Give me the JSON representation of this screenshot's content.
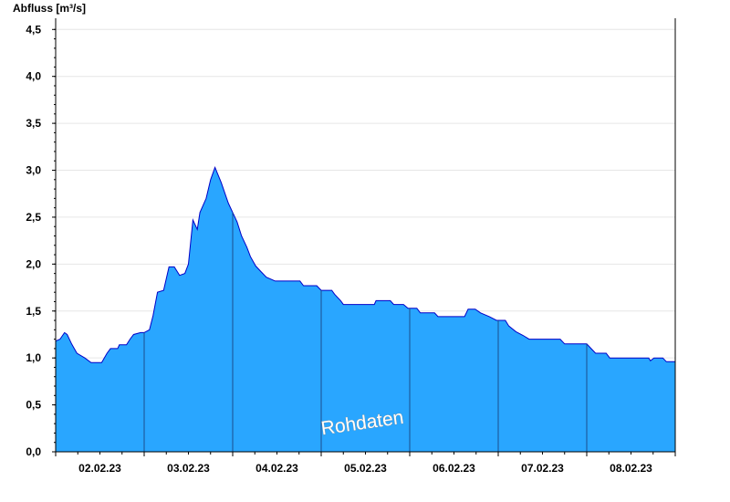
{
  "chart_data": {
    "type": "area",
    "title": "",
    "ylabel": "Abfluss [m³/s]",
    "xlabel": "",
    "watermark": "Rohdaten",
    "ylim": [
      0,
      4.6
    ],
    "xlim_days": [
      0,
      7
    ],
    "grid": true,
    "colors": {
      "fill": "#29a6ff",
      "line": "#0000c8",
      "grid": "#e6e6e6",
      "day_separator": "#1a4d8c"
    },
    "y_ticks": [
      {
        "value": 0.0,
        "label": "0,0"
      },
      {
        "value": 0.5,
        "label": "0,5"
      },
      {
        "value": 1.0,
        "label": "1,0"
      },
      {
        "value": 1.5,
        "label": "1,5"
      },
      {
        "value": 2.0,
        "label": "2,0"
      },
      {
        "value": 2.5,
        "label": "2,5"
      },
      {
        "value": 3.0,
        "label": "3,0"
      },
      {
        "value": 3.5,
        "label": "3,5"
      },
      {
        "value": 4.0,
        "label": "4,0"
      },
      {
        "value": 4.5,
        "label": "4,5"
      }
    ],
    "x_ticks": [
      {
        "label": "02.02.23",
        "day_center": 0.5
      },
      {
        "label": "03.02.23",
        "day_center": 1.5
      },
      {
        "label": "04.02.23",
        "day_center": 2.5
      },
      {
        "label": "05.02.23",
        "day_center": 3.5
      },
      {
        "label": "06.02.23",
        "day_center": 4.5
      },
      {
        "label": "07.02.23",
        "day_center": 5.5
      },
      {
        "label": "08.02.23",
        "day_center": 6.5
      }
    ],
    "day_boundaries": [
      1,
      2,
      3,
      4,
      5,
      6
    ],
    "series": [
      {
        "values_day_q": [
          [
            0.0,
            1.18
          ],
          [
            0.05,
            1.2
          ],
          [
            0.1,
            1.27
          ],
          [
            0.13,
            1.25
          ],
          [
            0.18,
            1.15
          ],
          [
            0.24,
            1.05
          ],
          [
            0.33,
            1.0
          ],
          [
            0.4,
            0.95
          ],
          [
            0.52,
            0.95
          ],
          [
            0.58,
            1.05
          ],
          [
            0.62,
            1.1
          ],
          [
            0.7,
            1.1
          ],
          [
            0.72,
            1.14
          ],
          [
            0.8,
            1.14
          ],
          [
            0.84,
            1.2
          ],
          [
            0.88,
            1.25
          ],
          [
            0.96,
            1.27
          ],
          [
            1.0,
            1.27
          ],
          [
            1.06,
            1.3
          ],
          [
            1.1,
            1.45
          ],
          [
            1.15,
            1.7
          ],
          [
            1.22,
            1.72
          ],
          [
            1.28,
            1.97
          ],
          [
            1.34,
            1.97
          ],
          [
            1.4,
            1.88
          ],
          [
            1.46,
            1.9
          ],
          [
            1.5,
            2.0
          ],
          [
            1.55,
            2.47
          ],
          [
            1.6,
            2.37
          ],
          [
            1.63,
            2.55
          ],
          [
            1.7,
            2.7
          ],
          [
            1.75,
            2.9
          ],
          [
            1.8,
            3.03
          ],
          [
            1.87,
            2.87
          ],
          [
            1.95,
            2.65
          ],
          [
            2.0,
            2.55
          ],
          [
            2.05,
            2.45
          ],
          [
            2.1,
            2.3
          ],
          [
            2.16,
            2.18
          ],
          [
            2.2,
            2.08
          ],
          [
            2.26,
            1.98
          ],
          [
            2.32,
            1.92
          ],
          [
            2.38,
            1.86
          ],
          [
            2.48,
            1.82
          ],
          [
            2.76,
            1.82
          ],
          [
            2.8,
            1.77
          ],
          [
            2.95,
            1.77
          ],
          [
            3.0,
            1.72
          ],
          [
            3.12,
            1.72
          ],
          [
            3.15,
            1.68
          ],
          [
            3.22,
            1.61
          ],
          [
            3.25,
            1.57
          ],
          [
            3.6,
            1.57
          ],
          [
            3.62,
            1.61
          ],
          [
            3.78,
            1.61
          ],
          [
            3.82,
            1.57
          ],
          [
            3.93,
            1.57
          ],
          [
            3.98,
            1.53
          ],
          [
            4.08,
            1.53
          ],
          [
            4.12,
            1.48
          ],
          [
            4.28,
            1.48
          ],
          [
            4.32,
            1.44
          ],
          [
            4.62,
            1.44
          ],
          [
            4.66,
            1.52
          ],
          [
            4.74,
            1.52
          ],
          [
            4.8,
            1.48
          ],
          [
            4.9,
            1.44
          ],
          [
            4.98,
            1.4
          ],
          [
            5.08,
            1.4
          ],
          [
            5.12,
            1.34
          ],
          [
            5.2,
            1.28
          ],
          [
            5.28,
            1.24
          ],
          [
            5.35,
            1.2
          ],
          [
            5.7,
            1.2
          ],
          [
            5.75,
            1.15
          ],
          [
            6.0,
            1.15
          ],
          [
            6.05,
            1.1
          ],
          [
            6.1,
            1.05
          ],
          [
            6.22,
            1.05
          ],
          [
            6.26,
            1.0
          ],
          [
            6.7,
            1.0
          ],
          [
            6.72,
            0.97
          ],
          [
            6.76,
            1.0
          ],
          [
            6.86,
            1.0
          ],
          [
            6.9,
            0.96
          ],
          [
            7.0,
            0.96
          ]
        ]
      }
    ]
  }
}
